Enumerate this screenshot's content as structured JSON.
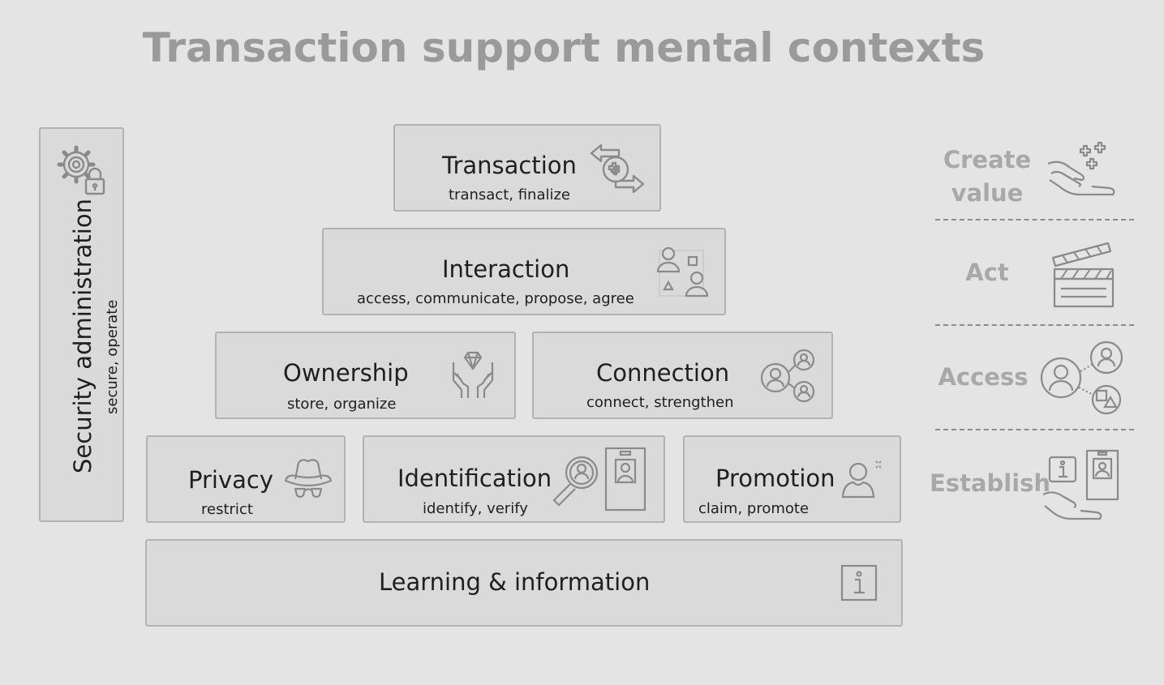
{
  "title": "Transaction support mental contexts",
  "boxes": {
    "transaction": {
      "label": "Transaction",
      "sub": "transact, finalize"
    },
    "interaction": {
      "label": "Interaction",
      "sub": "access, communicate, propose, agree"
    },
    "ownership": {
      "label": "Ownership",
      "sub": "store, organize"
    },
    "connection": {
      "label": "Connection",
      "sub": "connect, strengthen"
    },
    "privacy": {
      "label": "Privacy",
      "sub": "restrict"
    },
    "identification": {
      "label": "Identification",
      "sub": "identify, verify"
    },
    "promotion": {
      "label": "Promotion",
      "sub": "claim, promote"
    },
    "learning": {
      "label": "Learning & information"
    },
    "security": {
      "label": "Security administration",
      "sub": "secure, operate"
    }
  },
  "side": {
    "create_value": "Create value",
    "act": "Act",
    "access": "Access",
    "establish": "Establish"
  },
  "icons": {
    "transaction": "exchange-arrows-icon",
    "interaction": "people-shapes-icon",
    "ownership": "hands-diamond-icon",
    "connection": "network-people-icon",
    "privacy": "incognito-icon",
    "identification": "magnifier-id-badge-icon",
    "promotion": "person-sparkle-icon",
    "learning": "info-icon",
    "security": "gear-lock-icon",
    "create_value": "hand-plus-icon",
    "act": "clapperboard-icon",
    "access": "people-shapes-icon",
    "establish": "hand-info-badge-icon"
  }
}
